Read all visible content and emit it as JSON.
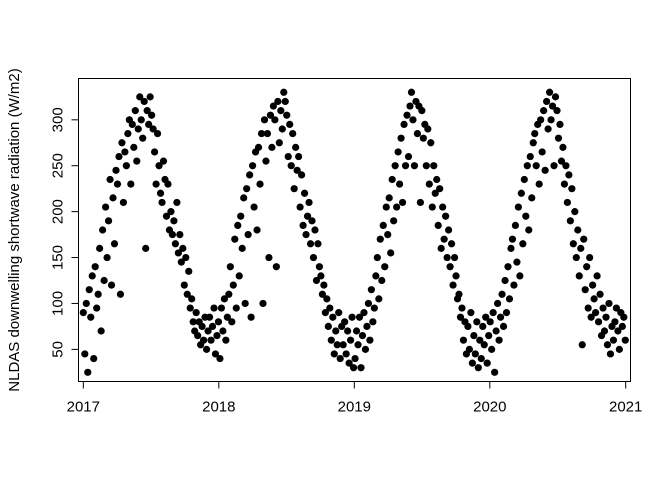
{
  "chart_data": {
    "type": "scatter",
    "title": "",
    "xlabel": "",
    "ylabel": "NLDAS downwelling shortwave radiation (W/m2)",
    "x_ticks": [
      "2017",
      "2018",
      "2019",
      "2020",
      "2021"
    ],
    "y_ticks": [
      "50",
      "100",
      "150",
      "200",
      "250",
      "300"
    ],
    "xlim": [
      "2016-12-19",
      "2021-01-14"
    ],
    "ylim": [
      15,
      345
    ],
    "grid": false,
    "legend": "none",
    "marker_color": "#000000",
    "series": [
      {
        "x": [
          "2017-01-01",
          "2017-01-05",
          "2017-01-09",
          "2017-01-13",
          "2017-01-17",
          "2017-01-21",
          "2017-01-25",
          "2017-01-29",
          "2017-02-02",
          "2017-02-06",
          "2017-02-10",
          "2017-02-14",
          "2017-02-18",
          "2017-02-22",
          "2017-02-26",
          "2017-03-02",
          "2017-03-06",
          "2017-03-10",
          "2017-03-14",
          "2017-03-18",
          "2017-03-22",
          "2017-03-26",
          "2017-03-30",
          "2017-04-03",
          "2017-04-07",
          "2017-04-11",
          "2017-04-15",
          "2017-04-19",
          "2017-04-23",
          "2017-04-27",
          "2017-05-01",
          "2017-05-05",
          "2017-05-09",
          "2017-05-13",
          "2017-05-17",
          "2017-05-21",
          "2017-05-25",
          "2017-05-29",
          "2017-06-02",
          "2017-06-06",
          "2017-06-10",
          "2017-06-14",
          "2017-06-18",
          "2017-06-22",
          "2017-06-26",
          "2017-06-30",
          "2017-07-04",
          "2017-07-08",
          "2017-07-12",
          "2017-07-16",
          "2017-07-20",
          "2017-07-24",
          "2017-07-28",
          "2017-08-01",
          "2017-08-05",
          "2017-08-09",
          "2017-08-13",
          "2017-08-17",
          "2017-08-21",
          "2017-08-25",
          "2017-08-29",
          "2017-09-02",
          "2017-09-06",
          "2017-09-10",
          "2017-09-14",
          "2017-09-18",
          "2017-09-22",
          "2017-09-26",
          "2017-09-30",
          "2017-10-04",
          "2017-10-08",
          "2017-10-12",
          "2017-10-16",
          "2017-10-20",
          "2017-10-24",
          "2017-10-28",
          "2017-11-01",
          "2017-11-05",
          "2017-11-09",
          "2017-11-13",
          "2017-11-17",
          "2017-11-21",
          "2017-11-25",
          "2017-11-29",
          "2017-12-03",
          "2017-12-07",
          "2017-12-11",
          "2017-12-15",
          "2017-12-19",
          "2017-12-23",
          "2017-12-27",
          "2017-12-31",
          "2018-01-04",
          "2018-01-08",
          "2018-01-12",
          "2018-01-16",
          "2018-01-20",
          "2018-01-24",
          "2018-01-28",
          "2018-02-01",
          "2018-02-05",
          "2018-02-09",
          "2018-02-13",
          "2018-02-17",
          "2018-02-21",
          "2018-02-25",
          "2018-03-01",
          "2018-03-05",
          "2018-03-09",
          "2018-03-13",
          "2018-03-17",
          "2018-03-21",
          "2018-03-25",
          "2018-03-29",
          "2018-04-02",
          "2018-04-06",
          "2018-04-10",
          "2018-04-14",
          "2018-04-18",
          "2018-04-22",
          "2018-04-26",
          "2018-04-30",
          "2018-05-04",
          "2018-05-08",
          "2018-05-12",
          "2018-05-16",
          "2018-05-20",
          "2018-05-24",
          "2018-05-28",
          "2018-06-01",
          "2018-06-05",
          "2018-06-09",
          "2018-06-13",
          "2018-06-17",
          "2018-06-21",
          "2018-06-25",
          "2018-06-29",
          "2018-07-03",
          "2018-07-07",
          "2018-07-11",
          "2018-07-15",
          "2018-07-19",
          "2018-07-23",
          "2018-07-27",
          "2018-07-31",
          "2018-08-04",
          "2018-08-08",
          "2018-08-12",
          "2018-08-16",
          "2018-08-20",
          "2018-08-24",
          "2018-08-28",
          "2018-09-01",
          "2018-09-05",
          "2018-09-09",
          "2018-09-13",
          "2018-09-17",
          "2018-09-21",
          "2018-09-25",
          "2018-09-29",
          "2018-10-03",
          "2018-10-07",
          "2018-10-11",
          "2018-10-15",
          "2018-10-19",
          "2018-10-23",
          "2018-10-27",
          "2018-10-31",
          "2018-11-04",
          "2018-11-08",
          "2018-11-12",
          "2018-11-16",
          "2018-11-20",
          "2018-11-24",
          "2018-11-28",
          "2018-12-02",
          "2018-12-06",
          "2018-12-10",
          "2018-12-14",
          "2018-12-18",
          "2018-12-22",
          "2018-12-26",
          "2018-12-30",
          "2019-01-03",
          "2019-01-07",
          "2019-01-11",
          "2019-01-15",
          "2019-01-19",
          "2019-01-23",
          "2019-01-27",
          "2019-01-31",
          "2019-02-04",
          "2019-02-08",
          "2019-02-12",
          "2019-02-16",
          "2019-02-20",
          "2019-02-24",
          "2019-02-28",
          "2019-03-04",
          "2019-03-08",
          "2019-03-12",
          "2019-03-16",
          "2019-03-20",
          "2019-03-24",
          "2019-03-28",
          "2019-04-01",
          "2019-04-05",
          "2019-04-09",
          "2019-04-13",
          "2019-04-17",
          "2019-04-21",
          "2019-04-25",
          "2019-04-29",
          "2019-05-03",
          "2019-05-07",
          "2019-05-11",
          "2019-05-15",
          "2019-05-19",
          "2019-05-23",
          "2019-05-27",
          "2019-05-31",
          "2019-06-04",
          "2019-06-08",
          "2019-06-12",
          "2019-06-16",
          "2019-06-20",
          "2019-06-24",
          "2019-06-28",
          "2019-07-02",
          "2019-07-06",
          "2019-07-10",
          "2019-07-14",
          "2019-07-18",
          "2019-07-22",
          "2019-07-26",
          "2019-07-30",
          "2019-08-03",
          "2019-08-07",
          "2019-08-11",
          "2019-08-15",
          "2019-08-19",
          "2019-08-23",
          "2019-08-27",
          "2019-08-31",
          "2019-09-04",
          "2019-09-08",
          "2019-09-12",
          "2019-09-16",
          "2019-09-20",
          "2019-09-24",
          "2019-09-28",
          "2019-10-02",
          "2019-10-06",
          "2019-10-10",
          "2019-10-14",
          "2019-10-18",
          "2019-10-22",
          "2019-10-26",
          "2019-10-30",
          "2019-11-03",
          "2019-11-07",
          "2019-11-11",
          "2019-11-15",
          "2019-11-19",
          "2019-11-23",
          "2019-11-27",
          "2019-12-01",
          "2019-12-05",
          "2019-12-09",
          "2019-12-13",
          "2019-12-17",
          "2019-12-21",
          "2019-12-25",
          "2019-12-29",
          "2020-01-02",
          "2020-01-06",
          "2020-01-10",
          "2020-01-14",
          "2020-01-18",
          "2020-01-22",
          "2020-01-26",
          "2020-01-30",
          "2020-02-03",
          "2020-02-07",
          "2020-02-11",
          "2020-02-15",
          "2020-02-19",
          "2020-02-23",
          "2020-02-27",
          "2020-03-02",
          "2020-03-06",
          "2020-03-10",
          "2020-03-14",
          "2020-03-18",
          "2020-03-22",
          "2020-03-26",
          "2020-03-30",
          "2020-04-03",
          "2020-04-07",
          "2020-04-11",
          "2020-04-15",
          "2020-04-19",
          "2020-04-23",
          "2020-04-27",
          "2020-05-01",
          "2020-05-05",
          "2020-05-09",
          "2020-05-13",
          "2020-05-17",
          "2020-05-21",
          "2020-05-25",
          "2020-05-29",
          "2020-06-02",
          "2020-06-06",
          "2020-06-10",
          "2020-06-14",
          "2020-06-18",
          "2020-06-22",
          "2020-06-26",
          "2020-06-30",
          "2020-07-04",
          "2020-07-08",
          "2020-07-12",
          "2020-07-16",
          "2020-07-20",
          "2020-07-24",
          "2020-07-28",
          "2020-08-01",
          "2020-08-05",
          "2020-08-09",
          "2020-08-13",
          "2020-08-17",
          "2020-08-21",
          "2020-08-25",
          "2020-08-29",
          "2020-09-02",
          "2020-09-06",
          "2020-09-10",
          "2020-09-14",
          "2020-09-18",
          "2020-09-22",
          "2020-09-26",
          "2020-09-30",
          "2020-10-04",
          "2020-10-08",
          "2020-10-12",
          "2020-10-16",
          "2020-10-20",
          "2020-10-24",
          "2020-10-28",
          "2020-11-01",
          "2020-11-05",
          "2020-11-09",
          "2020-11-13",
          "2020-11-17",
          "2020-11-21",
          "2020-11-25",
          "2020-11-29",
          "2020-12-03",
          "2020-12-07",
          "2020-12-11",
          "2020-12-15",
          "2020-12-19",
          "2020-12-23",
          "2020-12-27",
          "2020-12-31"
        ],
        "y": [
          90,
          45,
          100,
          25,
          115,
          85,
          130,
          40,
          140,
          95,
          110,
          160,
          70,
          180,
          125,
          205,
          150,
          190,
          235,
          120,
          215,
          165,
          245,
          230,
          260,
          110,
          275,
          210,
          265,
          250,
          285,
          300,
          230,
          295,
          270,
          310,
          255,
          290,
          325,
          300,
          280,
          320,
          160,
          310,
          295,
          325,
          305,
          290,
          265,
          230,
          285,
          250,
          220,
          210,
          255,
          235,
          195,
          230,
          180,
          200,
          175,
          190,
          165,
          210,
          155,
          175,
          145,
          160,
          120,
          150,
          110,
          135,
          95,
          105,
          80,
          70,
          90,
          65,
          80,
          55,
          75,
          60,
          85,
          50,
          70,
          85,
          60,
          75,
          95,
          45,
          65,
          80,
          40,
          95,
          70,
          105,
          60,
          85,
          110,
          140,
          80,
          120,
          170,
          95,
          185,
          130,
          195,
          160,
          215,
          100,
          225,
          175,
          240,
          85,
          250,
          205,
          265,
          180,
          270,
          230,
          285,
          100,
          300,
          255,
          285,
          150,
          305,
          270,
          315,
          300,
          140,
          320,
          275,
          310,
          290,
          330,
          320,
          305,
          260,
          295,
          250,
          285,
          225,
          270,
          245,
          260,
          205,
          240,
          185,
          220,
          175,
          195,
          210,
          165,
          190,
          150,
          180,
          125,
          165,
          140,
          130,
          110,
          120,
          90,
          105,
          75,
          95,
          60,
          85,
          45,
          70,
          55,
          90,
          40,
          75,
          55,
          80,
          45,
          70,
          35,
          60,
          85,
          30,
          40,
          70,
          55,
          85,
          30,
          65,
          90,
          50,
          75,
          100,
          60,
          115,
          80,
          95,
          130,
          150,
          105,
          170,
          125,
          185,
          140,
          205,
          175,
          215,
          155,
          235,
          190,
          250,
          205,
          265,
          230,
          280,
          210,
          295,
          250,
          305,
          260,
          315,
          330,
          300,
          250,
          320,
          285,
          315,
          210,
          310,
          280,
          295,
          250,
          290,
          230,
          275,
          205,
          250,
          220,
          235,
          185,
          225,
          160,
          205,
          170,
          195,
          150,
          180,
          140,
          165,
          120,
          150,
          130,
          105,
          110,
          85,
          95,
          60,
          80,
          45,
          75,
          50,
          90,
          35,
          65,
          45,
          80,
          30,
          60,
          40,
          75,
          55,
          85,
          35,
          65,
          80,
          50,
          90,
          25,
          70,
          100,
          60,
          85,
          110,
          75,
          125,
          90,
          140,
          105,
          160,
          170,
          120,
          185,
          145,
          205,
          130,
          220,
          165,
          235,
          195,
          250,
          180,
          260,
          215,
          275,
          285,
          250,
          295,
          230,
          300,
          265,
          310,
          245,
          320,
          290,
          330,
          300,
          315,
          250,
          325,
          310,
          280,
          295,
          255,
          270,
          230,
          250,
          210,
          240,
          190,
          225,
          165,
          200,
          150,
          180,
          130,
          160,
          55,
          170,
          115,
          140,
          95,
          150,
          85,
          120,
          105,
          90,
          130,
          80,
          110,
          65,
          95,
          70,
          85,
          55,
          100,
          45,
          75,
          60,
          80,
          95,
          70,
          50,
          90,
          75,
          85,
          60
        ]
      }
    ]
  }
}
